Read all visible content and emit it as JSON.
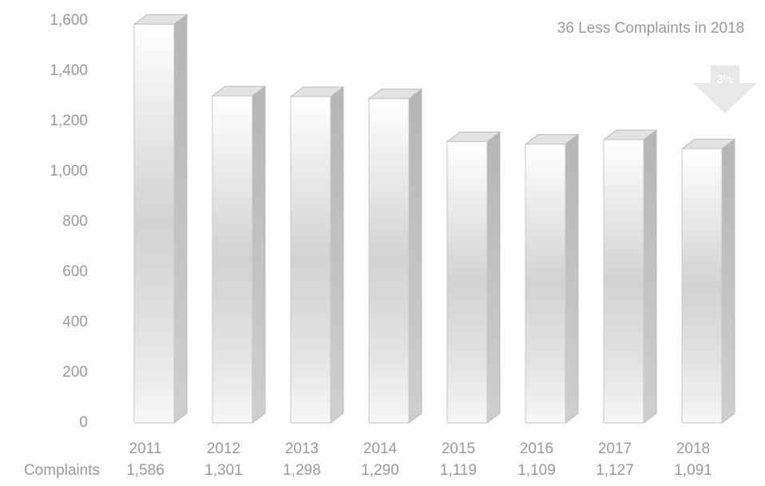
{
  "chart_data": {
    "type": "bar",
    "categories": [
      "2011",
      "2012",
      "2013",
      "2014",
      "2015",
      "2016",
      "2017",
      "2018"
    ],
    "series": [
      {
        "name": "Complaints",
        "color": "#c8c8c8",
        "values": [
          1586,
          1301,
          1298,
          1290,
          1119,
          1109,
          1127,
          1091
        ],
        "value_labels": [
          "1,586",
          "1,301",
          "1,298",
          "1,290",
          "1,119",
          "1,109",
          "1,127",
          "1,091"
        ]
      }
    ],
    "ylim": [
      0,
      1600
    ],
    "yticks": [
      0,
      200,
      400,
      600,
      800,
      {
        "value": 1000,
        "label": "1,000"
      },
      {
        "value": 1200,
        "label": "1,200"
      },
      {
        "value": 1400,
        "label": "1,400"
      },
      {
        "value": 1600,
        "label": "1,600"
      }
    ],
    "annotation": {
      "text": "36 Less Complaints in 2018",
      "badge": "3%"
    }
  }
}
